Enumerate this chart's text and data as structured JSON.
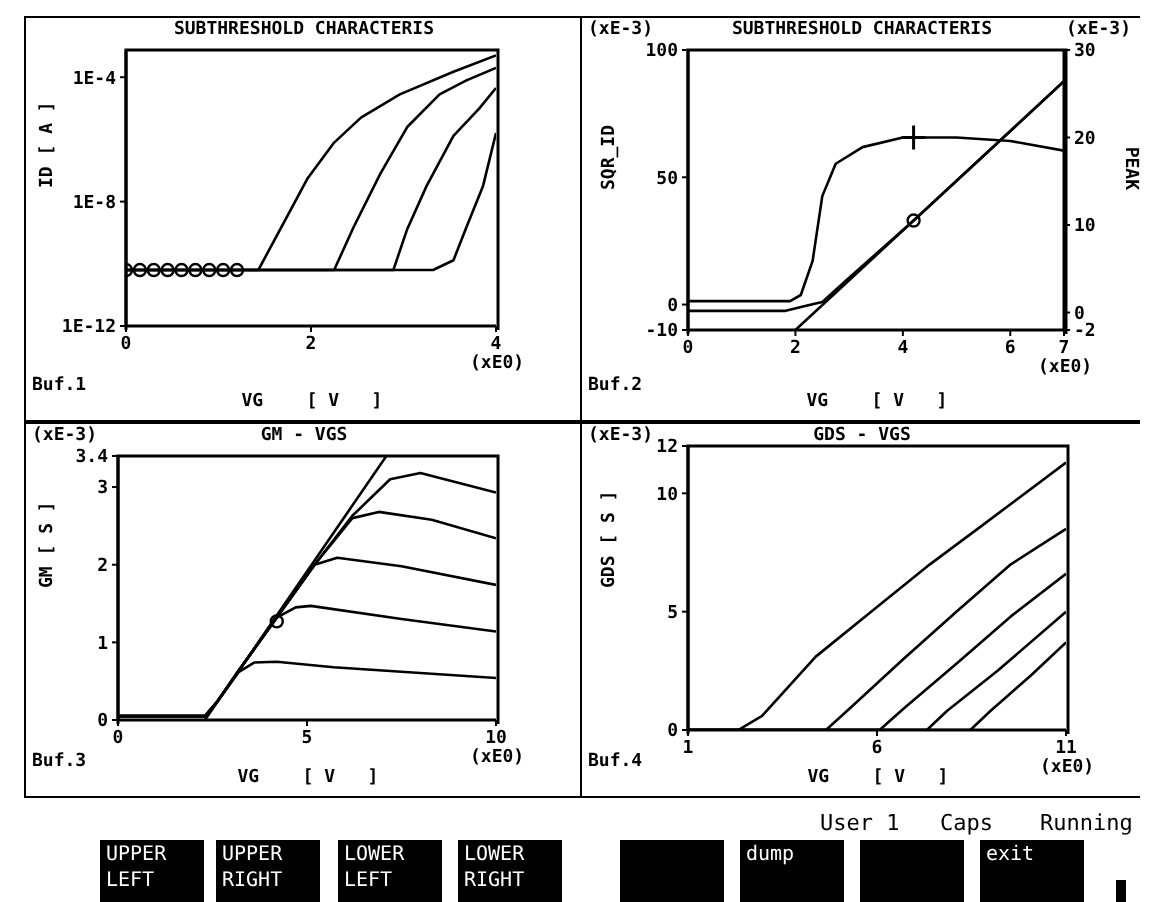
{
  "chart_data": [
    {
      "type": "line",
      "title": "SUBTHRESHOLD CHARACTERIS",
      "xlabel": "VG    [ V   ]",
      "ylabel": "ID    [ A ]",
      "log": "y",
      "xlim": [
        0,
        4
      ],
      "xticks": [
        0,
        2,
        4
      ],
      "ylim": [
        1e-12,
        0.00075
      ],
      "yticks": [
        {
          "value": 1e-12,
          "label": "1E-12"
        },
        {
          "value": 1e-08,
          "label": "1E-8"
        },
        {
          "value": 0.0001,
          "label": "1E-4"
        }
      ],
      "annotations": [
        "Buf.1",
        "(xE0)"
      ],
      "series": [
        {
          "color": "#000000",
          "x": [
            0,
            1.43,
            1.68,
            1.96,
            2.25,
            2.54,
            2.96,
            3.54,
            4
          ],
          "values": [
            6.3e-11,
            6.3e-11,
            1.5e-09,
            5.4e-08,
            7.9e-07,
            5e-06,
            2.8e-05,
            0.00015,
            0.0005
          ]
        },
        {
          "color": "#000000",
          "x": [
            0,
            2.25,
            2.46,
            2.75,
            3.04,
            3.39,
            3.68,
            4
          ],
          "values": [
            6.3e-11,
            6.3e-11,
            1.5e-09,
            7.9e-08,
            2.5e-06,
            2.8e-05,
            7.9e-05,
            0.0002
          ]
        },
        {
          "color": "#000000",
          "x": [
            0,
            2.89,
            3.04,
            3.25,
            3.54,
            3.82,
            4
          ],
          "values": [
            6.3e-11,
            6.3e-11,
            1.3e-09,
            3.2e-08,
            1.3e-06,
            1e-05,
            4.5e-05
          ]
        },
        {
          "color": "#000000",
          "x": [
            0,
            3.32,
            3.54,
            3.68,
            3.86,
            4
          ],
          "values": [
            6.3e-11,
            6.3e-11,
            1.3e-10,
            1.5e-09,
            3.2e-08,
            1.6e-06
          ]
        },
        {
          "type": "scatter",
          "marker": "circle",
          "color": "#000000",
          "x": [
            0,
            0.15,
            0.3,
            0.45,
            0.6,
            0.75,
            0.9,
            1.05,
            1.2
          ],
          "values": [
            6.3e-11,
            6.3e-11,
            6.3e-11,
            6.3e-11,
            6.3e-11,
            6.3e-11,
            6.3e-11,
            6.3e-11,
            6.3e-11
          ]
        }
      ]
    },
    {
      "type": "line",
      "title": "SUBTHRESHOLD CHARACTERIS",
      "xlabel": "VG    [ V   ]",
      "ylabel": "SQR_ID",
      "y2label": "PEAK",
      "xlim": [
        0,
        7
      ],
      "xticks": [
        0,
        2,
        4,
        6,
        7
      ],
      "ylim": [
        -10,
        100
      ],
      "yticks": [
        -10,
        0,
        50,
        100
      ],
      "y2lim": [
        -2,
        30
      ],
      "y2ticks": [
        -2,
        0,
        10,
        20,
        30
      ],
      "annotations": [
        "Buf.2",
        "(xE0)",
        "(xE-3)",
        "(xE-3)"
      ],
      "series": [
        {
          "color": "#000000",
          "x": [
            0,
            1.8,
            2.2,
            2.5,
            3,
            4.2,
            7
          ],
          "values": [
            -2.5,
            -2.5,
            -0.5,
            1,
            10.5,
            33,
            87.7
          ]
        },
        {
          "color": "#000000",
          "x": [
            2,
            7
          ],
          "values": [
            -10,
            87.7
          ]
        },
        {
          "type": "scatter",
          "marker": "circle",
          "color": "#000000",
          "x": [
            4.2
          ],
          "values": [
            33
          ]
        },
        {
          "color": "#000000",
          "axis": "y2",
          "x": [
            0,
            1.9,
            2.1,
            2.32,
            2.5,
            2.75,
            3.25,
            4,
            5,
            6,
            7
          ],
          "values": [
            1.3,
            1.3,
            2,
            5.9,
            13.3,
            17,
            18.9,
            20,
            20,
            19.6,
            18.5
          ]
        },
        {
          "type": "scatter",
          "marker": "cross",
          "color": "#000000",
          "axis": "y2",
          "x": [
            4.2
          ],
          "values": [
            20
          ]
        }
      ]
    },
    {
      "type": "line",
      "title": "GM - VGS",
      "xlabel": "VG    [ V   ]",
      "ylabel": "GM    [ S ]",
      "xlim": [
        0,
        10
      ],
      "xticks": [
        0,
        5,
        10
      ],
      "ylim": [
        0,
        3.4
      ],
      "yticks": [
        0,
        1,
        2,
        3,
        3.4
      ],
      "annotations": [
        "Buf.3",
        "(xE0)",
        "(xE-3)"
      ],
      "series": [
        {
          "color": "#000000",
          "x": [
            2.3,
            7.1
          ],
          "values": [
            0,
            3.4
          ]
        },
        {
          "color": "#000000",
          "x": [
            0,
            2.3,
            2.6,
            3.2,
            3.6,
            4.2,
            5.7,
            10
          ],
          "values": [
            0.05,
            0.05,
            0.22,
            0.62,
            0.74,
            0.75,
            0.68,
            0.54
          ]
        },
        {
          "color": "#000000",
          "x": [
            0,
            2.3,
            2.6,
            3.2,
            4.2,
            4.7,
            5.1,
            7.5,
            10
          ],
          "values": [
            0.05,
            0.05,
            0.22,
            0.64,
            1.32,
            1.45,
            1.47,
            1.3,
            1.14
          ]
        },
        {
          "color": "#000000",
          "x": [
            0,
            2.3,
            2.6,
            3.2,
            4.2,
            5.2,
            5.8,
            7.5,
            10
          ],
          "values": [
            0.05,
            0.05,
            0.22,
            0.64,
            1.32,
            2,
            2.09,
            1.98,
            1.74
          ]
        },
        {
          "color": "#000000",
          "x": [
            0,
            2.3,
            2.6,
            3.2,
            4.2,
            5.2,
            6.2,
            6.9,
            8.3,
            10
          ],
          "values": [
            0.05,
            0.05,
            0.22,
            0.64,
            1.32,
            2,
            2.6,
            2.68,
            2.58,
            2.34
          ]
        },
        {
          "color": "#000000",
          "x": [
            0,
            2.3,
            2.6,
            3.2,
            4.2,
            5.2,
            6.2,
            7.2,
            8,
            10
          ],
          "values": [
            0.05,
            0.05,
            0.22,
            0.64,
            1.32,
            2,
            2.63,
            3.1,
            3.18,
            2.93
          ]
        },
        {
          "type": "scatter",
          "marker": "circle",
          "color": "#000000",
          "x": [
            4.2
          ],
          "values": [
            1.27
          ]
        }
      ]
    },
    {
      "type": "line",
      "title": "GDS - VGS",
      "xlabel": "VG    [ V   ]",
      "ylabel": "GDS   [ S ]",
      "xlim": [
        1,
        11
      ],
      "xticks": [
        1,
        6,
        11
      ],
      "ylim": [
        0,
        12
      ],
      "yticks": [
        0,
        5,
        10,
        12
      ],
      "annotations": [
        "Buf.4",
        "(xE0)",
        "(xE-3)"
      ],
      "series": [
        {
          "color": "#000000",
          "x": [
            1,
            2.33,
            2.96,
            4.38,
            6,
            7.4,
            8.83,
            11
          ],
          "values": [
            0,
            0,
            0.6,
            3.1,
            5.2,
            7,
            8.7,
            11.3
          ]
        },
        {
          "color": "#000000",
          "x": [
            1,
            4.65,
            5.27,
            6.7,
            8.1,
            9.54,
            11
          ],
          "values": [
            0,
            0,
            0.9,
            3,
            5,
            7,
            8.5
          ]
        },
        {
          "color": "#000000",
          "x": [
            1,
            6.07,
            6.7,
            8.1,
            9.54,
            11
          ],
          "values": [
            0,
            0,
            0.9,
            2.8,
            4.8,
            6.6
          ]
        },
        {
          "color": "#000000",
          "x": [
            1,
            7.32,
            7.85,
            9.19,
            11
          ],
          "values": [
            0,
            0,
            0.8,
            2.5,
            5
          ]
        },
        {
          "color": "#000000",
          "x": [
            1,
            8.47,
            9,
            10.07,
            11
          ],
          "values": [
            0,
            0,
            0.8,
            2.3,
            3.7
          ]
        }
      ]
    },
    {
      "type": "other",
      "annotations": [
        "UPPER LEFT",
        "UPPER RIGHT",
        "LOWER LEFT",
        "LOWER RIGHT",
        "dump",
        "exit",
        "User 1",
        "Caps",
        "Running"
      ]
    }
  ]
}
